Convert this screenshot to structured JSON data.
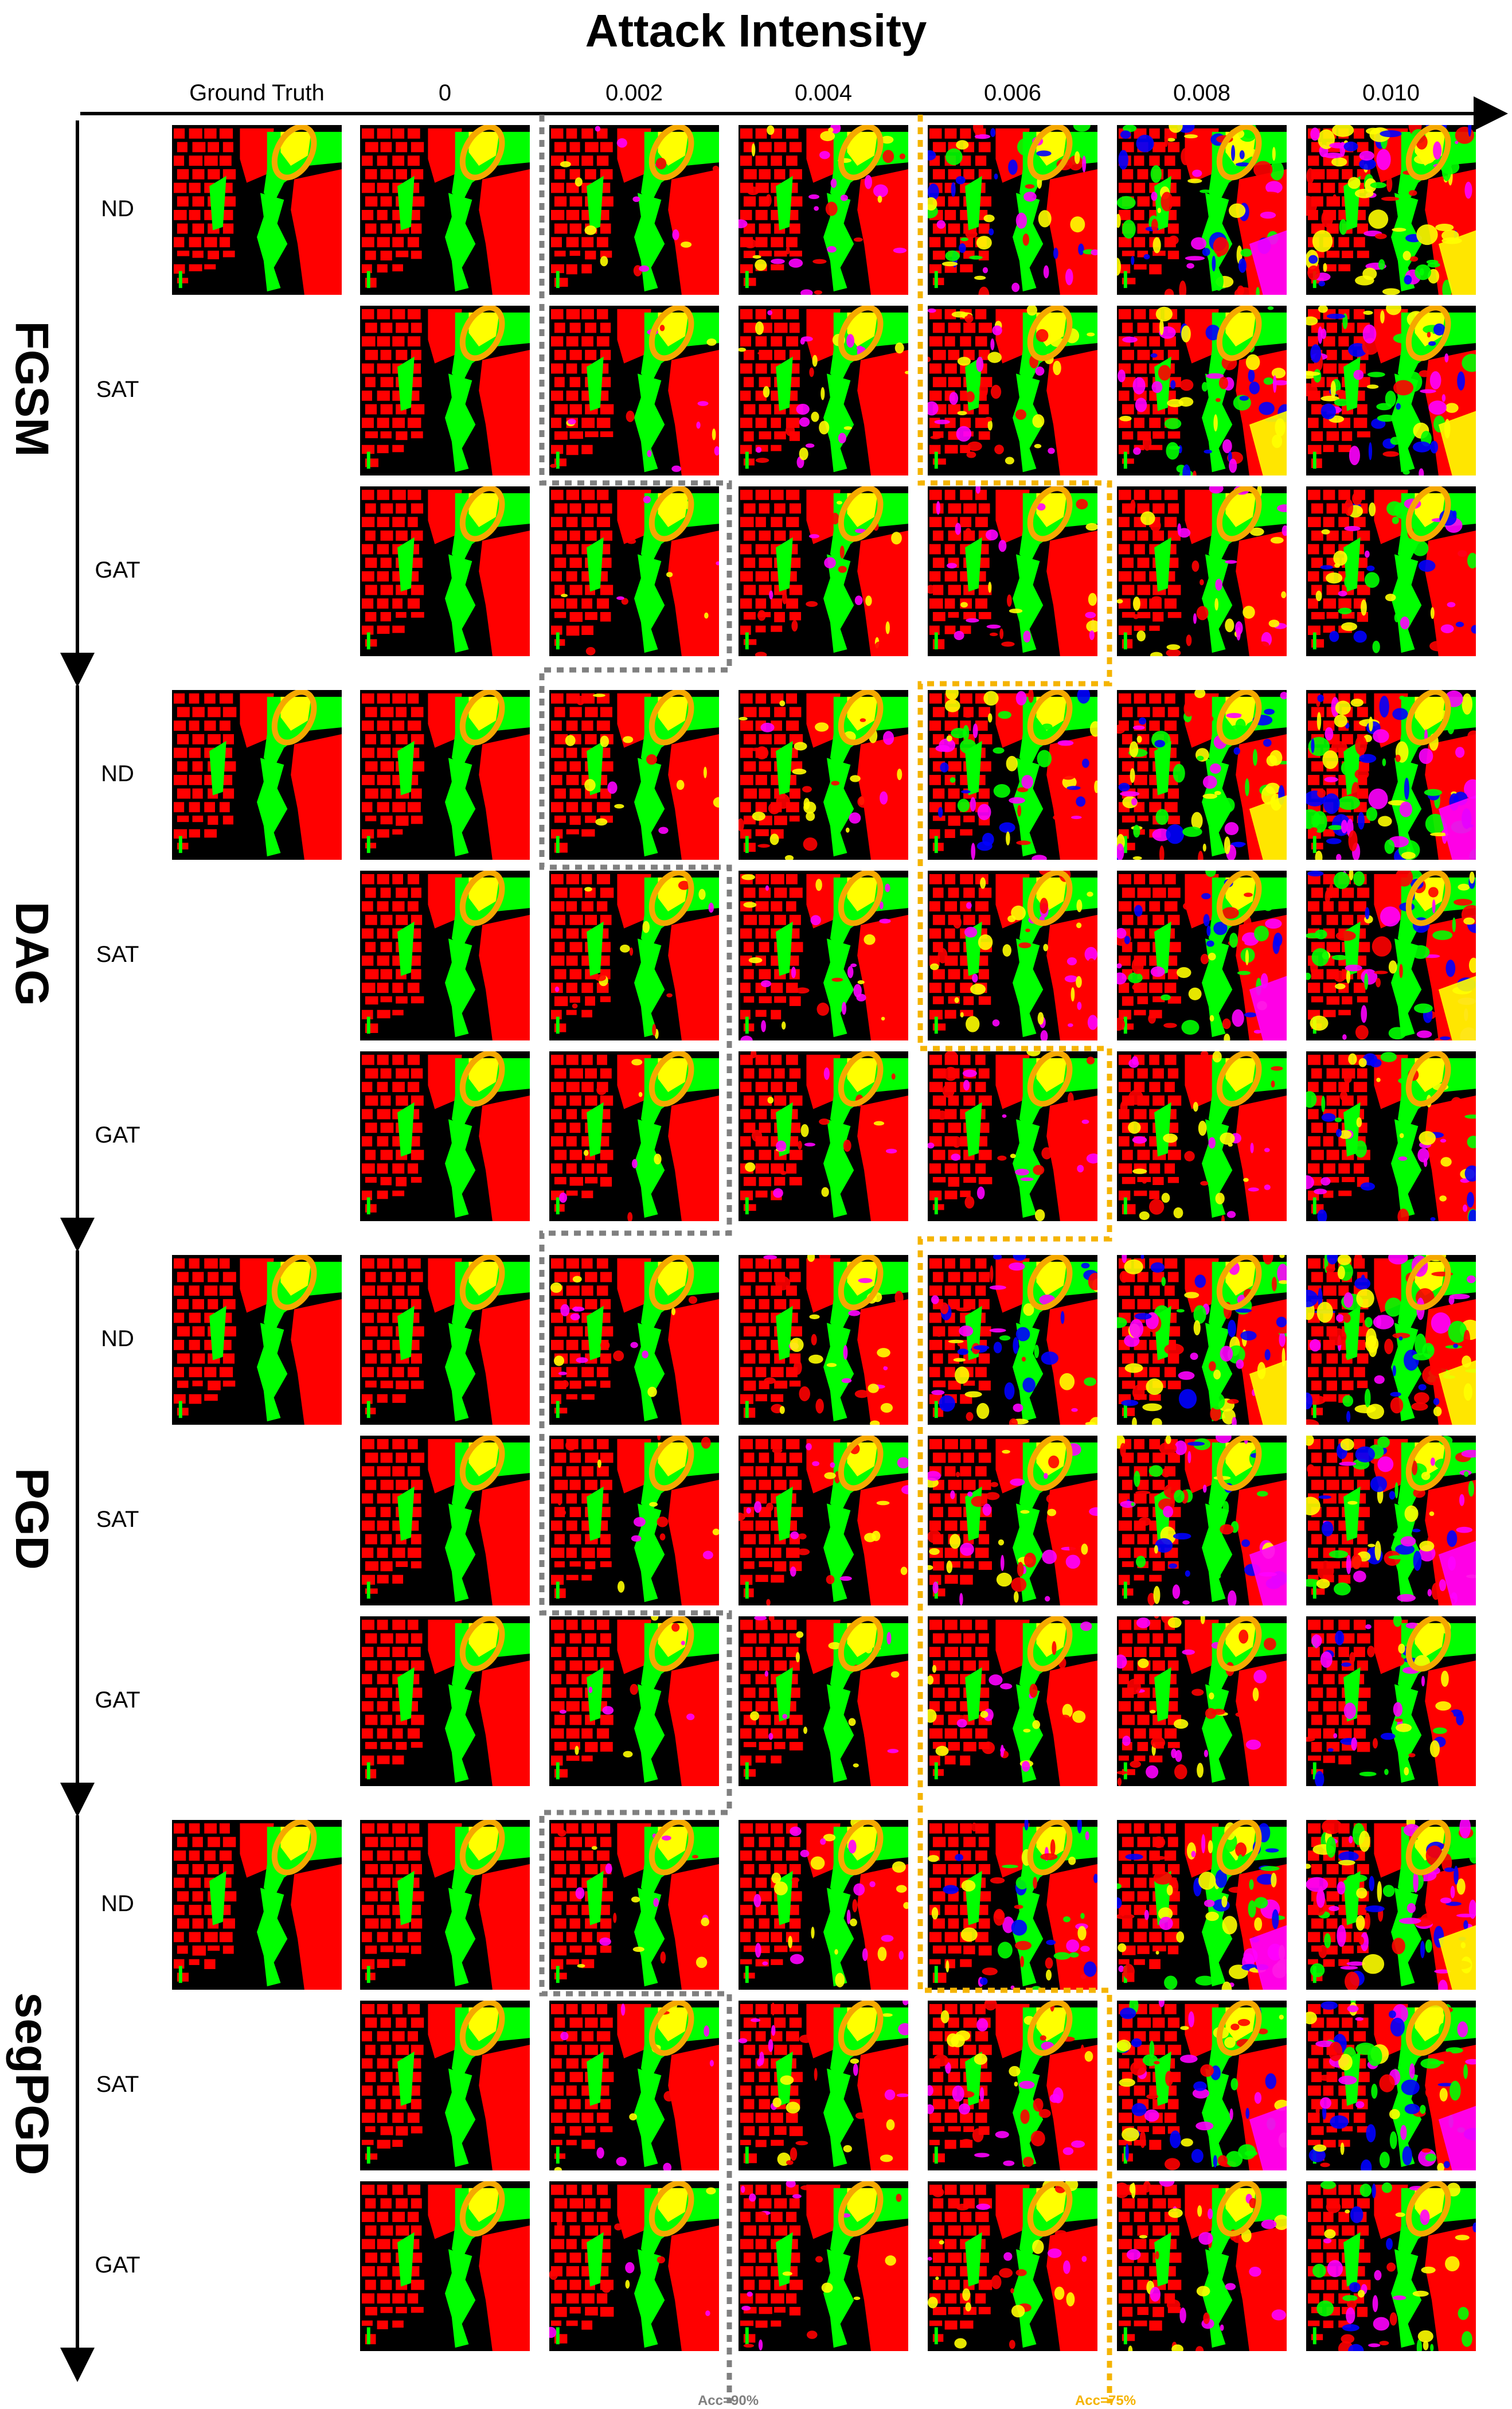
{
  "title": "Attack Intensity",
  "ground_truth_label": "Ground Truth",
  "intensities": [
    "0",
    "0.002",
    "0.004",
    "0.006",
    "0.008",
    "0.010"
  ],
  "defenses": [
    "ND",
    "SAT",
    "GAT"
  ],
  "attacks": [
    "FGSM",
    "DAG",
    "PGD",
    "segPGD"
  ],
  "acc_labels": {
    "gray": "Acc=90%",
    "orange": "Acc=75%"
  },
  "colors": {
    "background": "#000000",
    "class_red": "#ff0000",
    "class_green": "#00ff00",
    "class_yellow": "#ffff00",
    "class_magenta": "#ff00ff",
    "class_blue": "#0000ff",
    "ellipse": "#f5a800",
    "gray_box": "#808080",
    "orange_box": "#f5b400"
  }
}
